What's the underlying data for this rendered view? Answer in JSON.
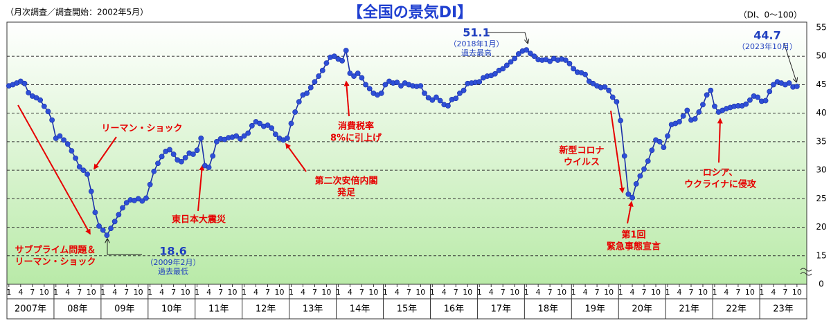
{
  "chart_data": {
    "type": "line",
    "title": "【全国の景気DI】",
    "subtitle": "（月次調査／調査開始：2002年5月）",
    "unit_note": "（DI、0～100）",
    "color": "#2e4fd6",
    "line_color": "#1a2fa8",
    "ylim": [
      10,
      55
    ],
    "yticks": [
      0,
      15,
      20,
      25,
      30,
      35,
      40,
      45,
      50,
      55
    ],
    "axis_break": true,
    "grid": true,
    "x_month_ticks": [
      1,
      4,
      7,
      10
    ],
    "x_year_labels": [
      "2007年",
      "08年",
      "09年",
      "10年",
      "11年",
      "12年",
      "13年",
      "14年",
      "15年",
      "16年",
      "17年",
      "18年",
      "19年",
      "20年",
      "21年",
      "22年",
      "23年"
    ],
    "x": [
      "2007-01",
      "2007-02",
      "2007-03",
      "2007-04",
      "2007-05",
      "2007-06",
      "2007-07",
      "2007-08",
      "2007-09",
      "2007-10",
      "2007-11",
      "2007-12",
      "2008-01",
      "2008-02",
      "2008-03",
      "2008-04",
      "2008-05",
      "2008-06",
      "2008-07",
      "2008-08",
      "2008-09",
      "2008-10",
      "2008-11",
      "2008-12",
      "2009-01",
      "2009-02",
      "2009-03",
      "2009-04",
      "2009-05",
      "2009-06",
      "2009-07",
      "2009-08",
      "2009-09",
      "2009-10",
      "2009-11",
      "2009-12",
      "2010-01",
      "2010-02",
      "2010-03",
      "2010-04",
      "2010-05",
      "2010-06",
      "2010-07",
      "2010-08",
      "2010-09",
      "2010-10",
      "2010-11",
      "2010-12",
      "2011-01",
      "2011-02",
      "2011-03",
      "2011-04",
      "2011-05",
      "2011-06",
      "2011-07",
      "2011-08",
      "2011-09",
      "2011-10",
      "2011-11",
      "2011-12",
      "2012-01",
      "2012-02",
      "2012-03",
      "2012-04",
      "2012-05",
      "2012-06",
      "2012-07",
      "2012-08",
      "2012-09",
      "2012-10",
      "2012-11",
      "2012-12",
      "2013-01",
      "2013-02",
      "2013-03",
      "2013-04",
      "2013-05",
      "2013-06",
      "2013-07",
      "2013-08",
      "2013-09",
      "2013-10",
      "2013-11",
      "2013-12",
      "2014-01",
      "2014-02",
      "2014-03",
      "2014-04",
      "2014-05",
      "2014-06",
      "2014-07",
      "2014-08",
      "2014-09",
      "2014-10",
      "2014-11",
      "2014-12",
      "2015-01",
      "2015-02",
      "2015-03",
      "2015-04",
      "2015-05",
      "2015-06",
      "2015-07",
      "2015-08",
      "2015-09",
      "2015-10",
      "2015-11",
      "2015-12",
      "2016-01",
      "2016-02",
      "2016-03",
      "2016-04",
      "2016-05",
      "2016-06",
      "2016-07",
      "2016-08",
      "2016-09",
      "2016-10",
      "2016-11",
      "2016-12",
      "2017-01",
      "2017-02",
      "2017-03",
      "2017-04",
      "2017-05",
      "2017-06",
      "2017-07",
      "2017-08",
      "2017-09",
      "2017-10",
      "2017-11",
      "2017-12",
      "2018-01",
      "2018-02",
      "2018-03",
      "2018-04",
      "2018-05",
      "2018-06",
      "2018-07",
      "2018-08",
      "2018-09",
      "2018-10",
      "2018-11",
      "2018-12",
      "2019-01",
      "2019-02",
      "2019-03",
      "2019-04",
      "2019-05",
      "2019-06",
      "2019-07",
      "2019-08",
      "2019-09",
      "2019-10",
      "2019-11",
      "2019-12",
      "2020-01",
      "2020-02",
      "2020-03",
      "2020-04",
      "2020-05",
      "2020-06",
      "2020-07",
      "2020-08",
      "2020-09",
      "2020-10",
      "2020-11",
      "2020-12",
      "2021-01",
      "2021-02",
      "2021-03",
      "2021-04",
      "2021-05",
      "2021-06",
      "2021-07",
      "2021-08",
      "2021-09",
      "2021-10",
      "2021-11",
      "2021-12",
      "2022-01",
      "2022-02",
      "2022-03",
      "2022-04",
      "2022-05",
      "2022-06",
      "2022-07",
      "2022-08",
      "2022-09",
      "2022-10",
      "2022-11",
      "2022-12",
      "2023-01",
      "2023-02",
      "2023-03",
      "2023-04",
      "2023-05",
      "2023-06",
      "2023-07",
      "2023-08",
      "2023-09",
      "2023-10"
    ],
    "values": [
      44.8,
      45.0,
      45.3,
      45.6,
      45.2,
      43.6,
      43.0,
      42.7,
      42.3,
      41.2,
      40.3,
      38.8,
      35.6,
      36.0,
      35.3,
      34.6,
      33.4,
      32.1,
      30.6,
      30.0,
      29.3,
      26.3,
      22.6,
      20.2,
      19.5,
      18.6,
      19.8,
      21.0,
      22.2,
      23.4,
      24.3,
      24.8,
      24.7,
      25.0,
      24.6,
      25.1,
      27.5,
      29.8,
      31.2,
      32.4,
      33.3,
      33.6,
      32.8,
      31.8,
      31.5,
      32.2,
      33.0,
      32.8,
      33.5,
      35.6,
      30.8,
      30.5,
      32.5,
      35.0,
      35.5,
      35.4,
      35.7,
      35.8,
      36.0,
      35.5,
      36.0,
      36.5,
      37.8,
      38.5,
      38.2,
      37.7,
      37.9,
      37.4,
      36.3,
      35.6,
      35.3,
      35.6,
      38.2,
      40.2,
      42.0,
      43.2,
      43.5,
      44.5,
      45.5,
      46.5,
      47.5,
      48.8,
      49.8,
      50.0,
      49.5,
      49.2,
      51.0,
      47.0,
      46.5,
      47.0,
      46.2,
      45.0,
      44.3,
      43.5,
      43.2,
      43.5,
      45.0,
      45.6,
      45.3,
      45.4,
      44.8,
      45.3,
      45.0,
      44.8,
      44.7,
      44.8,
      43.5,
      42.7,
      42.3,
      42.8,
      42.2,
      41.5,
      41.3,
      42.4,
      42.6,
      43.5,
      44.0,
      45.2,
      45.3,
      45.4,
      45.5,
      46.2,
      46.5,
      46.6,
      46.9,
      47.5,
      47.8,
      48.4,
      49.0,
      49.6,
      50.4,
      50.9,
      51.1,
      50.5,
      50.0,
      49.4,
      49.3,
      49.4,
      49.1,
      49.6,
      49.3,
      49.5,
      49.3,
      48.7,
      47.8,
      47.2,
      47.1,
      46.8,
      45.6,
      45.2,
      44.8,
      44.5,
      44.6,
      44.0,
      42.8,
      42.0,
      38.7,
      32.5,
      25.8,
      25.2,
      27.6,
      29.0,
      30.2,
      31.6,
      33.5,
      35.3,
      35.0,
      34.0,
      36.0,
      38.0,
      38.2,
      38.5,
      39.5,
      40.5,
      38.8,
      39.0,
      40.2,
      41.5,
      43.2,
      44.0,
      41.2,
      40.2,
      40.5,
      40.8,
      41.0,
      41.2,
      41.3,
      41.3,
      41.6,
      42.3,
      43.0,
      42.8,
      42.1,
      42.2,
      43.8,
      45.0,
      45.5,
      45.3,
      45.0,
      45.3,
      44.6,
      44.7
    ],
    "annotations": [
      {
        "lines": [
          "51.1",
          "（2018年1月）",
          "過去最高"
        ],
        "color": "#1f3fbf"
      },
      {
        "lines": [
          "44.7",
          "（2023年10月）"
        ],
        "color": "#1f3fbf"
      },
      {
        "lines": [
          "18.6",
          "（2009年2月）",
          "過去最低"
        ],
        "color": "#1f3fbf"
      },
      {
        "lines": [
          "リーマン・ショック"
        ],
        "color": "#e60000"
      },
      {
        "lines": [
          "サブプライム問題＆",
          "リーマン・ショック"
        ],
        "color": "#e60000"
      },
      {
        "lines": [
          "東日本大震災"
        ],
        "color": "#e60000"
      },
      {
        "lines": [
          "消費税率",
          "8%に引上げ"
        ],
        "color": "#e60000"
      },
      {
        "lines": [
          "第二次安倍内閣",
          "発足"
        ],
        "color": "#e60000"
      },
      {
        "lines": [
          "新型コロナ",
          "ウイルス"
        ],
        "color": "#e60000"
      },
      {
        "lines": [
          "第1回",
          "緊急事態宣言"
        ],
        "color": "#e60000"
      },
      {
        "lines": [
          "ロシア、",
          "ウクライナに侵攻"
        ],
        "color": "#e60000"
      }
    ]
  }
}
